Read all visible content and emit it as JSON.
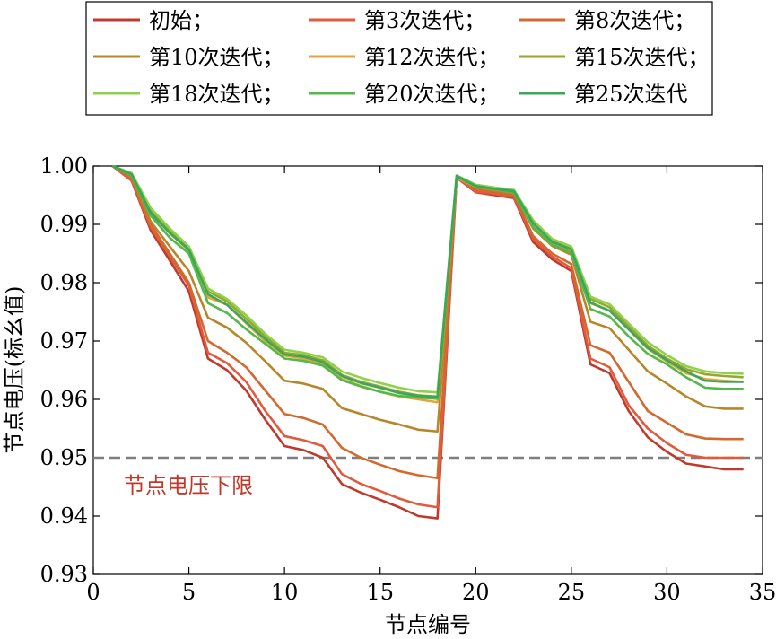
{
  "chart_data": {
    "type": "line",
    "xlabel": "节点编号",
    "ylabel": "节点电压(标幺值)",
    "xlim": [
      0,
      35
    ],
    "ylim": [
      0.93,
      1.0
    ],
    "xticks": [
      0,
      5,
      10,
      15,
      20,
      25,
      30,
      35
    ],
    "xtick_labels": [
      "0",
      "5",
      "10",
      "15",
      "20",
      "25",
      "30",
      "35"
    ],
    "yticks": [
      0.93,
      0.94,
      0.95,
      0.96,
      0.97,
      0.98,
      0.99,
      1.0
    ],
    "ytick_labels": [
      "0.93",
      "0.94",
      "0.95",
      "0.96",
      "0.97",
      "0.98",
      "0.99",
      "1.00"
    ],
    "grid": false,
    "legend_position": "top",
    "x": [
      1,
      2,
      3,
      4,
      5,
      6,
      7,
      8,
      9,
      10,
      11,
      12,
      13,
      14,
      15,
      16,
      17,
      18,
      19,
      20,
      21,
      22,
      23,
      24,
      25,
      26,
      27,
      28,
      29,
      30,
      31,
      32,
      33,
      34
    ],
    "series": [
      {
        "name": "初始；",
        "color": "#c0392b",
        "values": [
          1.0,
          0.9975,
          0.989,
          0.9838,
          0.9785,
          0.967,
          0.965,
          0.9615,
          0.9565,
          0.952,
          0.9513,
          0.95,
          0.9455,
          0.944,
          0.9428,
          0.9415,
          0.94,
          0.9396,
          0.998,
          0.9955,
          0.995,
          0.9945,
          0.987,
          0.984,
          0.982,
          0.966,
          0.9645,
          0.958,
          0.9535,
          0.951,
          0.949,
          0.9485,
          0.948,
          0.948
        ]
      },
      {
        "name": "第3次迭代；",
        "color": "#e25a3c",
        "values": [
          1.0,
          0.9975,
          0.9895,
          0.9845,
          0.9795,
          0.968,
          0.9662,
          0.963,
          0.958,
          0.9537,
          0.953,
          0.952,
          0.9472,
          0.9455,
          0.9443,
          0.943,
          0.942,
          0.9415,
          0.998,
          0.9956,
          0.9952,
          0.9947,
          0.9875,
          0.9845,
          0.9825,
          0.967,
          0.9655,
          0.959,
          0.955,
          0.9525,
          0.9505,
          0.95,
          0.95,
          0.95
        ]
      },
      {
        "name": "第8次迭代；",
        "color": "#d2692f",
        "values": [
          1.0,
          0.998,
          0.99,
          0.985,
          0.98,
          0.97,
          0.968,
          0.9655,
          0.9615,
          0.9575,
          0.9568,
          0.9557,
          0.9517,
          0.95,
          0.9488,
          0.9477,
          0.947,
          0.9465,
          0.998,
          0.996,
          0.9955,
          0.995,
          0.988,
          0.985,
          0.9832,
          0.9693,
          0.968,
          0.963,
          0.958,
          0.956,
          0.954,
          0.9533,
          0.9532,
          0.9532
        ]
      },
      {
        "name": "第10次迭代；",
        "color": "#b8862a",
        "values": [
          1.0,
          0.9982,
          0.9905,
          0.9862,
          0.982,
          0.974,
          0.9723,
          0.9697,
          0.9665,
          0.9632,
          0.9627,
          0.9618,
          0.9585,
          0.9575,
          0.9565,
          0.9557,
          0.9548,
          0.9545,
          0.998,
          0.9963,
          0.9958,
          0.9953,
          0.9893,
          0.9863,
          0.9848,
          0.9733,
          0.9722,
          0.9685,
          0.9648,
          0.9627,
          0.9605,
          0.9588,
          0.9584,
          0.9584
        ]
      },
      {
        "name": "第12次迭代；",
        "color": "#e8a33a",
        "values": [
          1.0,
          0.9985,
          0.992,
          0.9885,
          0.9855,
          0.9775,
          0.9762,
          0.973,
          0.97,
          0.9675,
          0.967,
          0.966,
          0.9635,
          0.9623,
          0.9613,
          0.9605,
          0.96,
          0.9595,
          0.998,
          0.9965,
          0.996,
          0.9955,
          0.99,
          0.9868,
          0.9855,
          0.9765,
          0.9752,
          0.972,
          0.9687,
          0.9665,
          0.9645,
          0.9635,
          0.9632,
          0.963
        ]
      },
      {
        "name": "第15次迭代；",
        "color": "#9aa52c",
        "values": [
          1.0,
          0.9987,
          0.9925,
          0.989,
          0.986,
          0.9785,
          0.9768,
          0.9738,
          0.9708,
          0.968,
          0.9676,
          0.9667,
          0.9642,
          0.963,
          0.9622,
          0.9613,
          0.9607,
          0.9605,
          0.9983,
          0.9967,
          0.9962,
          0.9958,
          0.9905,
          0.9873,
          0.986,
          0.9772,
          0.9758,
          0.9725,
          0.9692,
          0.967,
          0.9652,
          0.9643,
          0.964,
          0.9638
        ]
      },
      {
        "name": "第18次迭代；",
        "color": "#8fd14a",
        "values": [
          1.0,
          0.9988,
          0.9928,
          0.9893,
          0.9862,
          0.979,
          0.9772,
          0.9744,
          0.9712,
          0.9685,
          0.968,
          0.9672,
          0.9648,
          0.9637,
          0.9628,
          0.962,
          0.9614,
          0.9612,
          0.9984,
          0.9968,
          0.9963,
          0.9959,
          0.9907,
          0.9875,
          0.9862,
          0.9776,
          0.9763,
          0.973,
          0.9698,
          0.9676,
          0.9657,
          0.9648,
          0.9645,
          0.9644
        ]
      },
      {
        "name": "第20次迭代；",
        "color": "#55b84a",
        "values": [
          1.0,
          0.9984,
          0.9915,
          0.9877,
          0.985,
          0.9765,
          0.9748,
          0.972,
          0.9695,
          0.967,
          0.9666,
          0.9658,
          0.9633,
          0.9622,
          0.9613,
          0.9606,
          0.9603,
          0.9601,
          0.9982,
          0.9965,
          0.996,
          0.9955,
          0.9895,
          0.9865,
          0.9852,
          0.9755,
          0.9742,
          0.9708,
          0.9678,
          0.966,
          0.9638,
          0.962,
          0.9618,
          0.9618
        ]
      },
      {
        "name": "第25次迭代",
        "color": "#3aa85a",
        "values": [
          1.0,
          0.9986,
          0.992,
          0.9885,
          0.9857,
          0.978,
          0.9762,
          0.9732,
          0.9703,
          0.9677,
          0.9673,
          0.9664,
          0.964,
          0.9628,
          0.962,
          0.9611,
          0.9606,
          0.9604,
          0.9983,
          0.9966,
          0.9961,
          0.9957,
          0.9902,
          0.987,
          0.9857,
          0.9766,
          0.9752,
          0.972,
          0.9688,
          0.9667,
          0.9648,
          0.9632,
          0.963,
          0.963
        ]
      }
    ],
    "reference_line": {
      "y": 0.95,
      "label": "节点电压下限",
      "color": "#7f7f7f",
      "label_color": "#c0392b"
    }
  }
}
